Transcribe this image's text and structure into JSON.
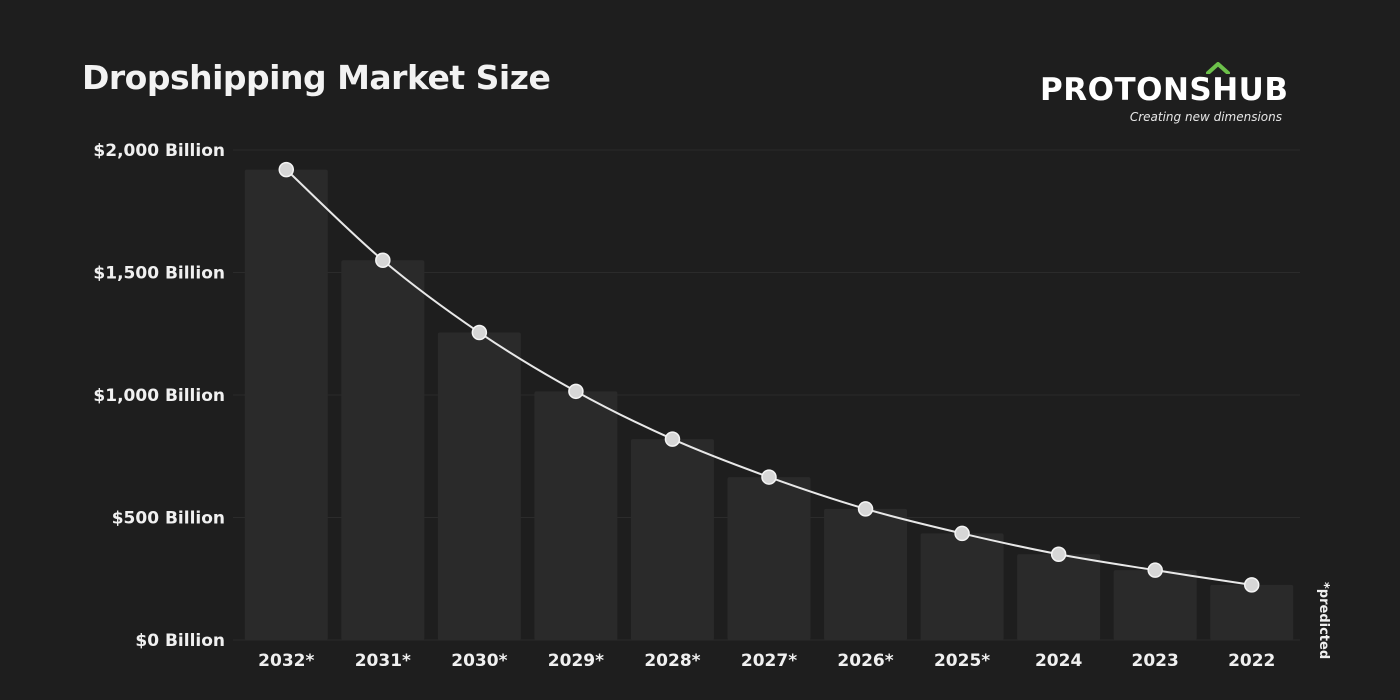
{
  "chart_data": {
    "type": "bar",
    "title": "Dropshipping Market Size",
    "categories": [
      "2032*",
      "2031*",
      "2030*",
      "2029*",
      "2028*",
      "2027*",
      "2026*",
      "2025*",
      "2024",
      "2023",
      "2022"
    ],
    "series": [
      {
        "values": [
          1920,
          1550,
          1255,
          1015,
          820,
          665,
          535,
          435,
          350,
          285,
          225
        ]
      }
    ],
    "line_overlay": true,
    "ylim": [
      0,
      2000
    ],
    "yticks": [
      {
        "value": 0,
        "label": "$0 Billion"
      },
      {
        "value": 500,
        "label": "$500 Billion"
      },
      {
        "value": 1000,
        "label": "$1,000 Billion"
      },
      {
        "value": 1500,
        "label": "$1,500 Billion"
      },
      {
        "value": 2000,
        "label": "$2,000 Billion"
      }
    ],
    "xlabel": "",
    "ylabel": "",
    "grid": true,
    "annotation": "*predicted"
  },
  "logo": {
    "wordmark": "PROTONSHUB",
    "tagline": "Creating new dimensions"
  },
  "colors": {
    "background": "#1e1e1e",
    "bar": "#2a2a2a",
    "line": "#e8e8e8",
    "marker": "#d6d6d6",
    "accent_roof": "#6cc04a",
    "accent_h": "#f5a623"
  }
}
